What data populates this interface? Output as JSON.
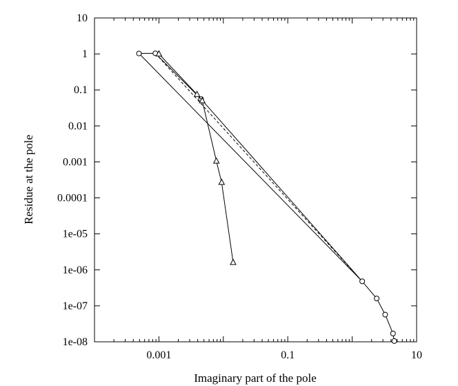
{
  "chart_data": {
    "type": "line",
    "title": "",
    "xlabel": "Imaginary part of the pole",
    "ylabel": "Residue at the pole",
    "x_scale": "log",
    "y_scale": "log",
    "xlim": [
      0.0001,
      10
    ],
    "ylim": [
      1e-08,
      10
    ],
    "x_ticks": [
      {
        "value": 0.001,
        "label": "0.001"
      },
      {
        "value": 0.1,
        "label": "0.1"
      },
      {
        "value": 10,
        "label": "10"
      }
    ],
    "y_ticks": [
      {
        "value": 10,
        "label": "10"
      },
      {
        "value": 1,
        "label": "1"
      },
      {
        "value": 0.1,
        "label": "0.1"
      },
      {
        "value": 0.01,
        "label": "0.01"
      },
      {
        "value": 0.001,
        "label": "0.001"
      },
      {
        "value": 0.0001,
        "label": "0.0001"
      },
      {
        "value": 1e-05,
        "label": "1e-05"
      },
      {
        "value": 1e-06,
        "label": "1e-06"
      },
      {
        "value": 1e-07,
        "label": "1e-07"
      },
      {
        "value": 1e-08,
        "label": "1e-08"
      }
    ],
    "grid": false,
    "series": [
      {
        "style": "solid",
        "marker": "none",
        "points": [
          [
            0.00049,
            1.03
          ],
          [
            1.43,
            4.8e-07
          ]
        ]
      },
      {
        "style": "dashed",
        "marker": "none",
        "points": [
          [
            0.00088,
            1.04
          ],
          [
            1.43,
            4.8e-07
          ]
        ]
      },
      {
        "style": "solid",
        "marker": "circle",
        "points": [
          [
            0.00049,
            1.03
          ],
          [
            0.00088,
            1.04
          ],
          [
            0.0045,
            0.056
          ],
          [
            1.43,
            4.8e-07
          ],
          [
            2.4,
            1.6e-07
          ],
          [
            3.25,
            5.7e-08
          ],
          [
            4.3,
            1.7e-08
          ],
          [
            4.5,
            1.05e-08
          ]
        ]
      },
      {
        "style": "solid",
        "marker": "triangle",
        "points": [
          [
            0.001,
            1.0
          ],
          [
            0.0039,
            0.075
          ],
          [
            0.0047,
            0.05
          ],
          [
            0.0078,
            0.00105
          ],
          [
            0.0094,
            0.00027
          ],
          [
            0.0142,
            1.6e-06
          ]
        ]
      }
    ]
  }
}
